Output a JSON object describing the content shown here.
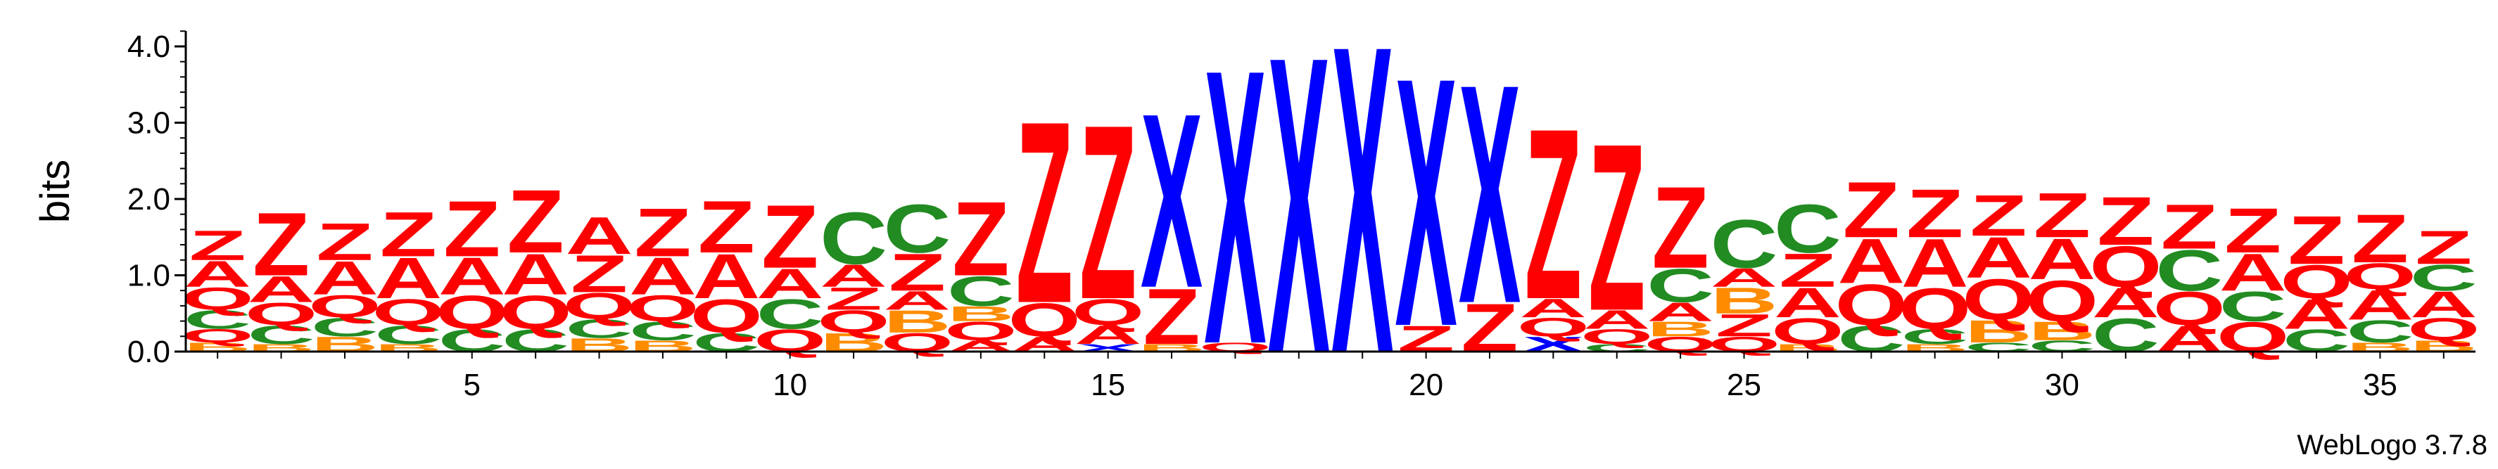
{
  "chart_data": {
    "type": "sequence-logo",
    "ylabel": "bits",
    "ylim": [
      0,
      4.2
    ],
    "y_ticks": [
      "0.0",
      "1.0",
      "2.0",
      "3.0",
      "4.0"
    ],
    "x_ticks": [
      "5",
      "10",
      "15",
      "20",
      "25",
      "30",
      "35"
    ],
    "x_tick_positions": [
      5,
      10,
      15,
      20,
      25,
      30,
      35
    ],
    "positions": 36,
    "colors": {
      "Z": "#ff0000",
      "A": "#ff0000",
      "X": "#0000ff",
      "Q": "#ff0000",
      "C": "#228b22",
      "B": "#ff8c00"
    },
    "columns": [
      [
        {
          "l": "B",
          "h": 0.12
        },
        {
          "l": "Q",
          "h": 0.18
        },
        {
          "l": "C",
          "h": 0.25
        },
        {
          "l": "Q",
          "h": 0.3
        },
        {
          "l": "A",
          "h": 0.35
        },
        {
          "l": "Z",
          "h": 0.4
        }
      ],
      [
        {
          "l": "B",
          "h": 0.1
        },
        {
          "l": "C",
          "h": 0.25
        },
        {
          "l": "Q",
          "h": 0.3
        },
        {
          "l": "A",
          "h": 0.35
        },
        {
          "l": "Z",
          "h": 0.85
        }
      ],
      [
        {
          "l": "B",
          "h": 0.2
        },
        {
          "l": "C",
          "h": 0.25
        },
        {
          "l": "Q",
          "h": 0.3
        },
        {
          "l": "A",
          "h": 0.45
        },
        {
          "l": "Z",
          "h": 0.5
        }
      ],
      [
        {
          "l": "B",
          "h": 0.1
        },
        {
          "l": "C",
          "h": 0.25
        },
        {
          "l": "Q",
          "h": 0.35
        },
        {
          "l": "A",
          "h": 0.55
        },
        {
          "l": "Z",
          "h": 0.6
        }
      ],
      [
        {
          "l": "C",
          "h": 0.3
        },
        {
          "l": "Q",
          "h": 0.45
        },
        {
          "l": "A",
          "h": 0.5
        },
        {
          "l": "Z",
          "h": 0.75
        }
      ],
      [
        {
          "l": "C",
          "h": 0.3
        },
        {
          "l": "Q",
          "h": 0.45
        },
        {
          "l": "A",
          "h": 0.55
        },
        {
          "l": "Z",
          "h": 0.85
        }
      ],
      [
        {
          "l": "B",
          "h": 0.18
        },
        {
          "l": "C",
          "h": 0.25
        },
        {
          "l": "Q",
          "h": 0.35
        },
        {
          "l": "Z",
          "h": 0.5
        },
        {
          "l": "A",
          "h": 0.5
        }
      ],
      [
        {
          "l": "B",
          "h": 0.15
        },
        {
          "l": "C",
          "h": 0.25
        },
        {
          "l": "Q",
          "h": 0.35
        },
        {
          "l": "A",
          "h": 0.5
        },
        {
          "l": "Z",
          "h": 0.65
        }
      ],
      [
        {
          "l": "C",
          "h": 0.25
        },
        {
          "l": "Q",
          "h": 0.45
        },
        {
          "l": "A",
          "h": 0.6
        },
        {
          "l": "Z",
          "h": 0.7
        }
      ],
      [
        {
          "l": "Q",
          "h": 0.3
        },
        {
          "l": "C",
          "h": 0.4
        },
        {
          "l": "A",
          "h": 0.4
        },
        {
          "l": "Z",
          "h": 0.85
        }
      ],
      [
        {
          "l": "B",
          "h": 0.25
        },
        {
          "l": "Q",
          "h": 0.3
        },
        {
          "l": "Z",
          "h": 0.3
        },
        {
          "l": "A",
          "h": 0.3
        },
        {
          "l": "C",
          "h": 0.7
        }
      ],
      [
        {
          "l": "Q",
          "h": 0.25
        },
        {
          "l": "B",
          "h": 0.3
        },
        {
          "l": "A",
          "h": 0.25
        },
        {
          "l": "Z",
          "h": 0.5
        },
        {
          "l": "C",
          "h": 0.65
        }
      ],
      [
        {
          "l": "A",
          "h": 0.15
        },
        {
          "l": "Q",
          "h": 0.25
        },
        {
          "l": "B",
          "h": 0.2
        },
        {
          "l": "C",
          "h": 0.4
        },
        {
          "l": "Z",
          "h": 1.0
        }
      ],
      [
        {
          "l": "A",
          "h": 0.2
        },
        {
          "l": "Q",
          "h": 0.45
        },
        {
          "l": "Z",
          "h": 2.45
        }
      ],
      [
        {
          "l": "X",
          "h": 0.1
        },
        {
          "l": "A",
          "h": 0.25
        },
        {
          "l": "Q",
          "h": 0.35
        },
        {
          "l": "Z",
          "h": 2.35
        }
      ],
      [
        {
          "l": "B",
          "h": 0.1
        },
        {
          "l": "Z",
          "h": 0.75
        },
        {
          "l": "X",
          "h": 2.35
        }
      ],
      [
        {
          "l": "Q",
          "h": 0.12
        },
        {
          "l": "X",
          "h": 3.7
        }
      ],
      [
        {
          "l": "X",
          "h": 4.0
        }
      ],
      [
        {
          "l": "X",
          "h": 4.15
        }
      ],
      [
        {
          "l": "Z",
          "h": 0.35
        },
        {
          "l": "X",
          "h": 3.35
        }
      ],
      [
        {
          "l": "Z",
          "h": 0.65
        },
        {
          "l": "X",
          "h": 2.95
        }
      ],
      [
        {
          "l": "X",
          "h": 0.2
        },
        {
          "l": "Q",
          "h": 0.25
        },
        {
          "l": "A",
          "h": 0.25
        },
        {
          "l": "Z",
          "h": 2.3
        }
      ],
      [
        {
          "l": "C",
          "h": 0.1
        },
        {
          "l": "Q",
          "h": 0.2
        },
        {
          "l": "A",
          "h": 0.25
        },
        {
          "l": "Z",
          "h": 2.25
        }
      ],
      [
        {
          "l": "Q",
          "h": 0.2
        },
        {
          "l": "B",
          "h": 0.2
        },
        {
          "l": "A",
          "h": 0.25
        },
        {
          "l": "C",
          "h": 0.45
        },
        {
          "l": "Z",
          "h": 1.1
        }
      ],
      [
        {
          "l": "Q",
          "h": 0.2
        },
        {
          "l": "Z",
          "h": 0.3
        },
        {
          "l": "B",
          "h": 0.35
        },
        {
          "l": "A",
          "h": 0.25
        },
        {
          "l": "C",
          "h": 0.65
        }
      ],
      [
        {
          "l": "B",
          "h": 0.1
        },
        {
          "l": "Q",
          "h": 0.35
        },
        {
          "l": "A",
          "h": 0.4
        },
        {
          "l": "Z",
          "h": 0.45
        },
        {
          "l": "C",
          "h": 0.65
        }
      ],
      [
        {
          "l": "C",
          "h": 0.35
        },
        {
          "l": "Q",
          "h": 0.55
        },
        {
          "l": "A",
          "h": 0.6
        },
        {
          "l": "Z",
          "h": 0.75
        }
      ],
      [
        {
          "l": "B",
          "h": 0.1
        },
        {
          "l": "C",
          "h": 0.2
        },
        {
          "l": "Q",
          "h": 0.55
        },
        {
          "l": "A",
          "h": 0.65
        },
        {
          "l": "Z",
          "h": 0.65
        }
      ],
      [
        {
          "l": "C",
          "h": 0.12
        },
        {
          "l": "B",
          "h": 0.3
        },
        {
          "l": "Q",
          "h": 0.55
        },
        {
          "l": "A",
          "h": 0.55
        },
        {
          "l": "Z",
          "h": 0.55
        }
      ],
      [
        {
          "l": "C",
          "h": 0.15
        },
        {
          "l": "B",
          "h": 0.25
        },
        {
          "l": "Q",
          "h": 0.55
        },
        {
          "l": "A",
          "h": 0.55
        },
        {
          "l": "Z",
          "h": 0.6
        }
      ],
      [
        {
          "l": "C",
          "h": 0.45
        },
        {
          "l": "A",
          "h": 0.4
        },
        {
          "l": "Q",
          "h": 0.55
        },
        {
          "l": "Z",
          "h": 0.65
        }
      ],
      [
        {
          "l": "A",
          "h": 0.35
        },
        {
          "l": "Q",
          "h": 0.45
        },
        {
          "l": "C",
          "h": 0.55
        },
        {
          "l": "Z",
          "h": 0.6
        }
      ],
      [
        {
          "l": "Q",
          "h": 0.4
        },
        {
          "l": "C",
          "h": 0.4
        },
        {
          "l": "A",
          "h": 0.5
        },
        {
          "l": "Z",
          "h": 0.6
        }
      ],
      [
        {
          "l": "C",
          "h": 0.3
        },
        {
          "l": "A",
          "h": 0.4
        },
        {
          "l": "Q",
          "h": 0.45
        },
        {
          "l": "Z",
          "h": 0.65
        }
      ],
      [
        {
          "l": "B",
          "h": 0.12
        },
        {
          "l": "C",
          "h": 0.3
        },
        {
          "l": "A",
          "h": 0.4
        },
        {
          "l": "Q",
          "h": 0.35
        },
        {
          "l": "Z",
          "h": 0.65
        }
      ],
      [
        {
          "l": "B",
          "h": 0.15
        },
        {
          "l": "Q",
          "h": 0.3
        },
        {
          "l": "A",
          "h": 0.35
        },
        {
          "l": "C",
          "h": 0.35
        },
        {
          "l": "Z",
          "h": 0.45
        }
      ]
    ]
  },
  "footer": {
    "credit": "WebLogo 3.7.8"
  }
}
